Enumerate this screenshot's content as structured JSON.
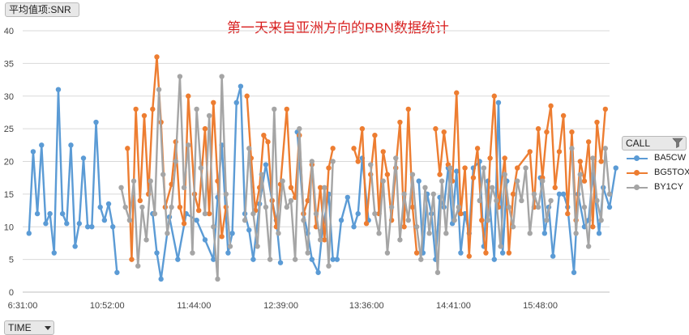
{
  "value_field_label": "平均值项:SNR",
  "axis_field_label": "TIME",
  "legend": {
    "title": "CALL",
    "items": [
      {
        "name": "BA5CW",
        "color": "#5b9bd5"
      },
      {
        "name": "BG5TOX",
        "color": "#ed7d31"
      },
      {
        "name": "BY1CY",
        "color": "#a5a5a5"
      }
    ]
  },
  "chart_data": {
    "type": "line",
    "title": "第一天来自亚洲方向的RBN数据统计",
    "xlabel": "",
    "ylabel": "",
    "ylim": [
      0,
      40
    ],
    "yticks": [
      0,
      5,
      10,
      15,
      20,
      25,
      30,
      35,
      40
    ],
    "xlim": [
      "6:31:00",
      "end"
    ],
    "xticks": [
      "6:31:00",
      "10:52:00",
      "11:44:00",
      "12:39:00",
      "13:36:00",
      "14:41:00",
      "15:48:00"
    ],
    "gridlines": "horizontal",
    "legend_position": "right",
    "point_count": 280,
    "series": [
      {
        "name": "BA5CW",
        "color": "#5b9bd5",
        "points": [
          [
            3,
            9
          ],
          [
            5,
            21.5
          ],
          [
            7,
            12
          ],
          [
            9,
            22.5
          ],
          [
            11,
            10.5
          ],
          [
            13,
            12
          ],
          [
            15,
            6
          ],
          [
            17,
            31
          ],
          [
            19,
            12
          ],
          [
            21,
            10.5
          ],
          [
            23,
            22.5
          ],
          [
            25,
            7
          ],
          [
            27,
            10.5
          ],
          [
            29,
            20.5
          ],
          [
            31,
            10
          ],
          [
            33,
            10
          ],
          [
            35,
            26
          ],
          [
            37,
            13
          ],
          [
            39,
            11
          ],
          [
            41,
            13.5
          ],
          [
            43,
            10
          ],
          [
            45,
            3
          ],
          [
            62,
            12
          ],
          [
            64,
            6
          ],
          [
            66,
            2
          ],
          [
            70,
            11.5
          ],
          [
            74,
            5
          ],
          [
            78,
            12
          ],
          [
            83,
            11
          ],
          [
            87,
            8
          ],
          [
            91,
            5
          ],
          [
            93,
            14.5
          ],
          [
            95,
            22.5
          ],
          [
            98,
            6
          ],
          [
            100,
            9
          ],
          [
            102,
            29
          ],
          [
            104,
            31.5
          ],
          [
            106,
            12
          ],
          [
            108,
            9.5
          ],
          [
            110,
            5
          ],
          [
            113,
            13.5
          ],
          [
            116,
            19.5
          ],
          [
            119,
            14
          ],
          [
            121,
            11
          ],
          [
            123,
            4.5
          ],
          [
            131,
            24.5
          ],
          [
            134,
            12
          ],
          [
            136,
            9
          ],
          [
            138,
            5
          ],
          [
            141,
            3
          ],
          [
            143,
            9.5
          ],
          [
            146,
            15
          ],
          [
            148,
            5
          ],
          [
            150,
            5
          ],
          [
            152,
            11
          ],
          [
            155,
            14.5
          ],
          [
            158,
            10
          ],
          [
            160,
            12
          ],
          [
            162,
            20.5
          ],
          [
            165,
            11
          ],
          [
            189,
            17
          ],
          [
            191,
            6
          ],
          [
            193,
            15
          ],
          [
            195,
            12
          ],
          [
            197,
            5
          ],
          [
            199,
            14.5
          ],
          [
            201,
            13
          ],
          [
            203,
            19
          ],
          [
            205,
            10.5
          ],
          [
            207,
            18.5
          ],
          [
            209,
            6
          ],
          [
            211,
            12
          ],
          [
            213,
            9
          ],
          [
            215,
            19
          ],
          [
            218,
            20
          ],
          [
            220,
            7
          ],
          [
            222,
            17
          ],
          [
            225,
            5
          ],
          [
            227,
            29
          ],
          [
            229,
            6
          ],
          [
            231,
            17
          ],
          [
            247,
            17.5
          ],
          [
            249,
            9
          ],
          [
            251,
            13
          ],
          [
            253,
            5.5
          ],
          [
            256,
            15
          ],
          [
            258,
            15
          ],
          [
            260,
            13
          ],
          [
            263,
            3
          ],
          [
            265,
            15
          ],
          [
            268,
            10
          ],
          [
            270,
            11
          ],
          [
            272,
            18
          ],
          [
            275,
            9
          ],
          [
            277,
            16
          ],
          [
            280,
            13
          ],
          [
            283,
            19
          ]
        ]
      },
      {
        "name": "BG5TOX",
        "color": "#ed7d31",
        "points": [
          [
            50,
            22
          ],
          [
            52,
            5
          ],
          [
            54,
            28
          ],
          [
            56,
            14
          ],
          [
            58,
            27
          ],
          [
            60,
            15
          ],
          [
            62,
            28
          ],
          [
            64,
            36
          ],
          [
            66,
            26
          ],
          [
            68,
            13
          ],
          [
            71,
            16.5
          ],
          [
            73,
            23
          ],
          [
            75,
            13
          ],
          [
            77,
            10.5
          ],
          [
            79,
            30
          ],
          [
            82,
            15
          ],
          [
            84,
            12.5
          ],
          [
            87,
            25
          ],
          [
            89,
            12
          ],
          [
            91,
            29
          ],
          [
            93,
            17
          ],
          [
            95,
            8.5
          ],
          [
            97,
            13
          ],
          [
            107,
            30
          ],
          [
            109,
            20.5
          ],
          [
            111,
            12.5
          ],
          [
            113,
            16
          ],
          [
            115,
            24
          ],
          [
            117,
            23
          ],
          [
            119,
            14
          ],
          [
            121,
            10
          ],
          [
            123,
            16.5
          ],
          [
            126,
            28
          ],
          [
            128,
            16
          ],
          [
            130,
            14.5
          ],
          [
            132,
            24
          ],
          [
            134,
            12
          ],
          [
            136,
            14
          ],
          [
            138,
            19.5
          ],
          [
            140,
            10
          ],
          [
            142,
            16
          ],
          [
            144,
            8
          ],
          [
            146,
            19
          ],
          [
            148,
            22
          ],
          [
            158,
            22
          ],
          [
            160,
            20
          ],
          [
            162,
            25
          ],
          [
            164,
            10.5
          ],
          [
            166,
            18
          ],
          [
            168,
            24
          ],
          [
            170,
            12
          ],
          [
            172,
            21.5
          ],
          [
            174,
            18
          ],
          [
            176,
            11
          ],
          [
            178,
            19
          ],
          [
            180,
            26
          ],
          [
            182,
            10
          ],
          [
            184,
            28
          ],
          [
            186,
            13
          ],
          [
            188,
            6
          ],
          [
            197,
            25
          ],
          [
            199,
            18
          ],
          [
            201,
            24.5
          ],
          [
            203,
            19.5
          ],
          [
            205,
            17
          ],
          [
            207,
            30.5
          ],
          [
            209,
            12
          ],
          [
            211,
            19
          ],
          [
            213,
            5.5
          ],
          [
            215,
            17.5
          ],
          [
            217,
            22
          ],
          [
            219,
            11
          ],
          [
            221,
            6
          ],
          [
            223,
            20.5
          ],
          [
            225,
            30
          ],
          [
            227,
            13
          ],
          [
            230,
            20.5
          ],
          [
            232,
            6
          ],
          [
            234,
            15
          ],
          [
            236,
            19
          ],
          [
            242,
            21.5
          ],
          [
            244,
            13
          ],
          [
            246,
            25
          ],
          [
            248,
            17.5
          ],
          [
            250,
            24.5
          ],
          [
            252,
            28.5
          ],
          [
            254,
            16
          ],
          [
            256,
            21.5
          ],
          [
            258,
            27
          ],
          [
            260,
            12
          ],
          [
            262,
            24.5
          ],
          [
            264,
            11
          ],
          [
            266,
            20
          ],
          [
            268,
            17
          ],
          [
            270,
            23
          ],
          [
            272,
            10
          ],
          [
            274,
            26
          ],
          [
            276,
            20
          ],
          [
            278,
            28
          ]
        ]
      },
      {
        "name": "BY1CY",
        "color": "#a5a5a5",
        "points": [
          [
            47,
            16
          ],
          [
            49,
            13
          ],
          [
            51,
            11
          ],
          [
            53,
            17
          ],
          [
            55,
            4
          ],
          [
            57,
            13
          ],
          [
            59,
            8
          ],
          [
            61,
            17
          ],
          [
            63,
            12
          ],
          [
            65,
            31
          ],
          [
            67,
            18
          ],
          [
            69,
            9
          ],
          [
            71,
            13
          ],
          [
            73,
            20
          ],
          [
            75,
            33
          ],
          [
            77,
            16
          ],
          [
            79,
            22.5
          ],
          [
            81,
            6
          ],
          [
            83,
            28
          ],
          [
            85,
            19
          ],
          [
            87,
            12
          ],
          [
            89,
            27
          ],
          [
            91,
            10
          ],
          [
            93,
            2
          ],
          [
            95,
            33
          ],
          [
            97,
            15
          ],
          [
            99,
            7
          ],
          [
            106,
            11
          ],
          [
            108,
            22
          ],
          [
            110,
            12
          ],
          [
            112,
            7
          ],
          [
            114,
            18
          ],
          [
            116,
            13
          ],
          [
            118,
            5
          ],
          [
            120,
            28
          ],
          [
            122,
            9
          ],
          [
            124,
            17
          ],
          [
            126,
            13
          ],
          [
            128,
            14
          ],
          [
            130,
            5
          ],
          [
            132,
            25
          ],
          [
            134,
            11
          ],
          [
            136,
            6
          ],
          [
            138,
            20
          ],
          [
            140,
            12
          ],
          [
            142,
            8
          ],
          [
            144,
            16
          ],
          [
            146,
            4
          ],
          [
            148,
            20
          ],
          [
            166,
            19.5
          ],
          [
            168,
            12
          ],
          [
            170,
            9
          ],
          [
            172,
            17
          ],
          [
            174,
            6
          ],
          [
            176,
            13
          ],
          [
            178,
            20.5
          ],
          [
            180,
            8
          ],
          [
            182,
            15
          ],
          [
            184,
            11
          ],
          [
            186,
            18
          ],
          [
            188,
            10
          ],
          [
            190,
            5
          ],
          [
            192,
            16
          ],
          [
            194,
            9
          ],
          [
            196,
            15
          ],
          [
            198,
            3
          ],
          [
            200,
            17
          ],
          [
            202,
            9
          ],
          [
            204,
            19
          ],
          [
            206,
            11
          ],
          [
            208,
            13
          ],
          [
            218,
            14
          ],
          [
            220,
            19
          ],
          [
            222,
            11
          ],
          [
            224,
            16
          ],
          [
            226,
            14
          ],
          [
            228,
            7
          ],
          [
            230,
            18
          ],
          [
            232,
            13
          ],
          [
            234,
            10
          ],
          [
            236,
            17
          ],
          [
            238,
            14
          ],
          [
            240,
            19
          ],
          [
            242,
            9
          ],
          [
            244,
            15
          ],
          [
            246,
            13
          ],
          [
            248,
            17
          ],
          [
            250,
            11
          ],
          [
            252,
            14
          ],
          [
            262,
            22
          ],
          [
            264,
            9
          ],
          [
            266,
            18
          ],
          [
            268,
            13
          ],
          [
            270,
            7
          ],
          [
            272,
            20.5
          ],
          [
            274,
            14
          ],
          [
            276,
            11
          ],
          [
            278,
            22
          ],
          [
            280,
            15
          ]
        ]
      }
    ]
  }
}
